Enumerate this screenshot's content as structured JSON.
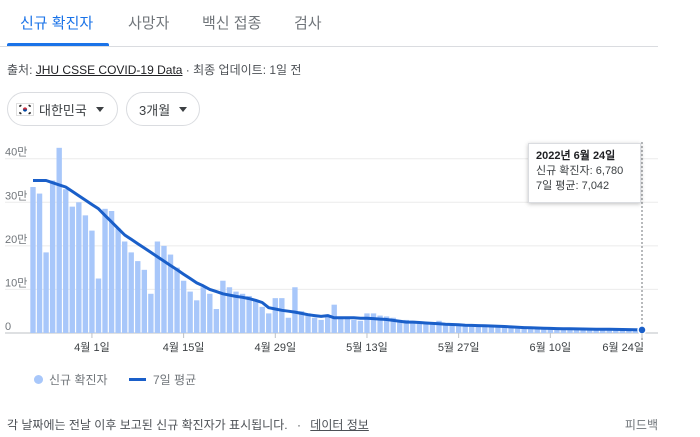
{
  "tabs": [
    {
      "label": "신규 확진자",
      "active": true
    },
    {
      "label": "사망자",
      "active": false
    },
    {
      "label": "백신 접종",
      "active": false
    },
    {
      "label": "검사",
      "active": false
    }
  ],
  "source": {
    "prefix": "출처: ",
    "link": "JHU CSSE COVID-19 Data",
    "suffix": " · 최종 업데이트: 1일 전"
  },
  "filters": {
    "country": "대한민국",
    "country_icon": "south-korea-flag",
    "period": "3개월"
  },
  "tooltip": {
    "date": "2022년 6월 24일",
    "cases": "신규 확진자: 6,780",
    "avg": "7일 평균: 7,042"
  },
  "legend": {
    "bars": "신규 확진자",
    "line": "7일 평균"
  },
  "footer": {
    "note": "각 날짜에는 전날 이후 보고된 신규 확진자가 표시됩니다.",
    "link": "데이터 정보",
    "feedback": "피드백"
  },
  "colors": {
    "bar": "#a8c7fa",
    "line": "#1a5fc9",
    "accent": "#1a73e8"
  },
  "chart_data": {
    "type": "bar",
    "ylim": [
      0,
      420000
    ],
    "yticks": [
      0,
      100000,
      200000,
      300000,
      400000
    ],
    "ytick_labels": [
      "0",
      "10만",
      "20만",
      "30만",
      "40만"
    ],
    "xticks": [
      {
        "index": 9,
        "label": "4월 1일"
      },
      {
        "index": 23,
        "label": "4월 15일"
      },
      {
        "index": 37,
        "label": "4월 29일"
      },
      {
        "index": 51,
        "label": "5월 13일"
      },
      {
        "index": 65,
        "label": "5월 27일"
      },
      {
        "index": 79,
        "label": "6월 10일"
      },
      {
        "index": 93,
        "label": "6월 24일"
      }
    ],
    "series": [
      {
        "name": "신규 확진자",
        "type": "bar",
        "values": [
          335000,
          320000,
          185000,
          350000,
          425000,
          330000,
          290000,
          300000,
          270000,
          235000,
          125000,
          285000,
          280000,
          240000,
          210000,
          185000,
          165000,
          145000,
          90000,
          210000,
          200000,
          180000,
          150000,
          120000,
          95000,
          75000,
          105000,
          90000,
          55000,
          120000,
          105000,
          95000,
          90000,
          85000,
          75000,
          60000,
          45000,
          80000,
          80000,
          35000,
          105000,
          50000,
          45000,
          35000,
          30000,
          40000,
          65000,
          35000,
          32000,
          30000,
          28000,
          45000,
          45000,
          40000,
          38000,
          35000,
          30000,
          30000,
          28000,
          25000,
          22000,
          22000,
          28000,
          20000,
          20000,
          18000,
          18000,
          18000,
          15000,
          15000,
          15000,
          15000,
          15000,
          12000,
          10000,
          9000,
          9000,
          12000,
          12000,
          10000,
          9000,
          9000,
          9000,
          8000,
          8000,
          8000,
          8000,
          8000,
          7000,
          7000,
          7000,
          7000,
          7000,
          6780
        ]
      },
      {
        "name": "7일 평균",
        "type": "line",
        "values": [
          350000,
          350000,
          350000,
          345000,
          340000,
          335000,
          325000,
          315000,
          305000,
          295000,
          285000,
          270000,
          255000,
          240000,
          225000,
          215000,
          205000,
          195000,
          185000,
          175000,
          165000,
          155000,
          145000,
          135000,
          125000,
          115000,
          108000,
          100000,
          95000,
          90000,
          87000,
          84000,
          82000,
          79000,
          75000,
          70000,
          58000,
          55000,
          52000,
          50000,
          48000,
          45000,
          42000,
          40000,
          38000,
          40000,
          35000,
          35000,
          35000,
          35000,
          34000,
          34000,
          33000,
          32000,
          31000,
          29000,
          27000,
          25000,
          25000,
          24000,
          23000,
          22000,
          21000,
          20000,
          19500,
          19000,
          18000,
          17500,
          17000,
          16500,
          16000,
          15500,
          15000,
          14000,
          13000,
          12500,
          12000,
          11500,
          11000,
          10500,
          10000,
          9800,
          9600,
          9400,
          9200,
          9000,
          8800,
          8600,
          8400,
          8200,
          8000,
          7700,
          7400,
          7042
        ]
      }
    ]
  }
}
